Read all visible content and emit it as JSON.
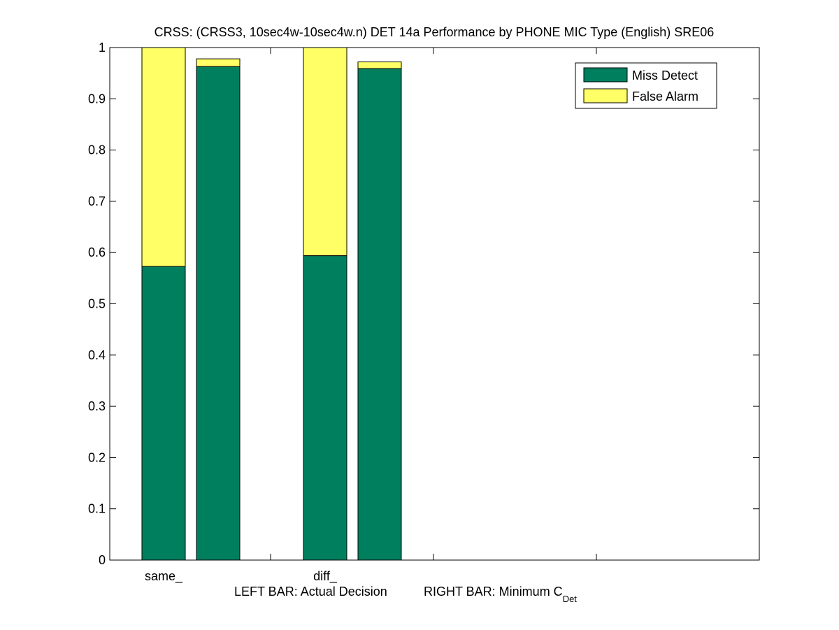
{
  "chart_data": {
    "type": "bar",
    "stacked": true,
    "title": "CRSS: (CRSS3, 10sec4w-10sec4w.n) DET 14a Performance by PHONE MIC Type (English) SRE06",
    "xlabel": {
      "left_text": "LEFT BAR: Actual Decision",
      "right_text": "RIGHT BAR: Minimum C",
      "right_subscript": "Det"
    },
    "ylabel": "",
    "ylim": [
      0,
      1
    ],
    "yticks": [
      "0",
      "0.1",
      "0.2",
      "0.3",
      "0.4",
      "0.5",
      "0.6",
      "0.7",
      "0.8",
      "0.9",
      "1"
    ],
    "categories": [
      "same_",
      "diff_"
    ],
    "bar_roles": [
      "Actual Decision",
      "Minimum C_Det"
    ],
    "series": [
      {
        "name": "Miss Detect",
        "color": "#007f5f",
        "values": [
          [
            0.573,
            0.963
          ],
          [
            0.594,
            0.959
          ]
        ]
      },
      {
        "name": "False Alarm",
        "color": "#ffff66",
        "values": [
          [
            0.427,
            0.015
          ],
          [
            0.406,
            0.013
          ]
        ]
      }
    ],
    "legend": {
      "position": "top-right",
      "entries": [
        "Miss Detect",
        "False Alarm"
      ]
    },
    "grid": false
  }
}
